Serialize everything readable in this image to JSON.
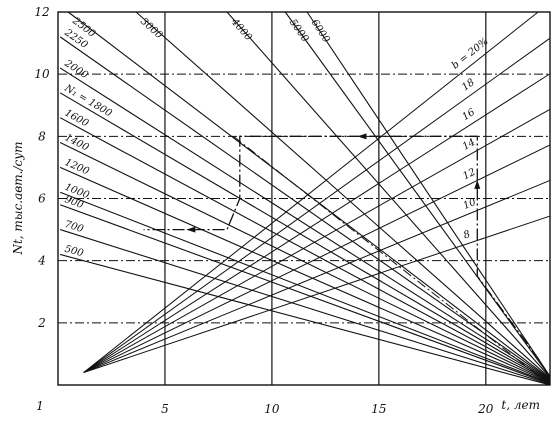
{
  "chart_data": {
    "type": "line",
    "xlabel": "t, лет",
    "ylabel": "Nt, тыс.авт./сут",
    "xlim": [
      0,
      23
    ],
    "ylim": [
      0,
      12
    ],
    "x_ticks": [
      "5",
      "10",
      "15",
      "20"
    ],
    "y_ticks": [
      "2",
      "4",
      "6",
      "8",
      "10",
      "12"
    ],
    "origin_label": "1",
    "grid": true,
    "n1_prefix": "N₁ =",
    "series_n1": [
      {
        "label": "500",
        "y0": 1.0,
        "y_end": 4.75
      },
      {
        "label": "700",
        "y0": 1.4,
        "y_end": 6.75
      },
      {
        "label": "900",
        "y0": 1.8,
        "y_end": 9.7
      },
      {
        "label": "1000",
        "y0": 2.0,
        "y_end": 12.0
      },
      {
        "label": "1200",
        "y0": 2.4,
        "y_end": 12.0
      },
      {
        "label": "1400",
        "y0": 2.8,
        "y_end": 12.0
      },
      {
        "label": "1600",
        "y0": 3.2,
        "y_end": 12.0
      },
      {
        "label": "1800",
        "y0": 3.6,
        "y_end": 12.0
      },
      {
        "label": "2000",
        "y0": 4.0,
        "y_end": 12.0
      },
      {
        "label": "2250",
        "y0": 4.5,
        "y_end": 12.0
      },
      {
        "label": "2500",
        "y0": 5.0,
        "y_end": 12.0
      },
      {
        "label": "3000",
        "y0": 6.0,
        "y_end": 12.0
      },
      {
        "label": "4000",
        "y0": 8.0,
        "y_end": 12.0
      },
      {
        "label": "5000",
        "y0": 10.0,
        "y_end": 12.0
      },
      {
        "label": "6000",
        "y0": 11.0,
        "y_end": 12.0
      }
    ],
    "series_b": [
      {
        "label": "b = 20%",
        "slope": 0.52
      },
      {
        "label": "18",
        "slope": 0.47
      },
      {
        "label": "16",
        "slope": 0.42
      },
      {
        "label": "14",
        "slope": 0.37
      },
      {
        "label": "12",
        "slope": 0.32
      },
      {
        "label": "10",
        "slope": 0.27
      },
      {
        "label": "8",
        "slope": 0.22
      }
    ],
    "example_path": {
      "points": [
        [
          22.5,
          0.8
        ],
        [
          19.6,
          3.5
        ],
        [
          19.6,
          8.0
        ],
        [
          8.5,
          8.0
        ],
        [
          8.5,
          6.0
        ],
        [
          7.9,
          5.0
        ],
        [
          4.0,
          5.0
        ]
      ]
    },
    "dashed_reference": {
      "x": [
        8.2,
        23.0
      ],
      "y": [
        8.0,
        0.0
      ]
    }
  }
}
